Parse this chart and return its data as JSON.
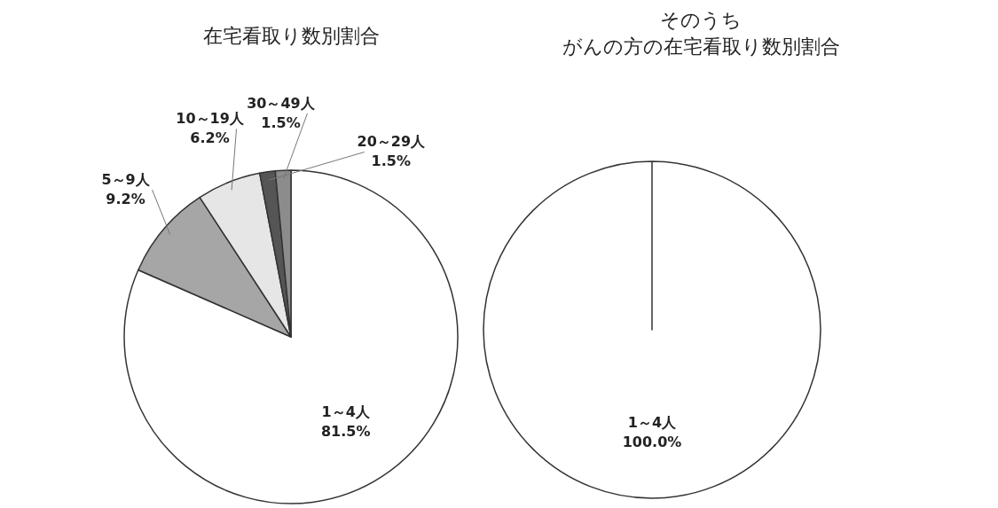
{
  "chart_data": [
    {
      "type": "pie",
      "title": "在宅看取り数別割合",
      "categories": [
        "1～4人",
        "5～9人",
        "10～19人",
        "20～29人",
        "30～49人"
      ],
      "values": [
        81.5,
        9.2,
        6.2,
        1.5,
        1.5
      ],
      "value_labels": [
        "81.5%",
        "9.2%",
        "6.2%",
        "1.5%",
        "1.5%"
      ],
      "colors": [
        "#ffffff",
        "#a6a6a6",
        "#e6e6e6",
        "#555555",
        "#8c8c8c"
      ]
    },
    {
      "type": "pie",
      "title": "そのうち",
      "subtitle": "がんの方の在宅看取り数別割合",
      "categories": [
        "1～4人"
      ],
      "values": [
        100.0
      ],
      "value_labels": [
        "100.0%"
      ],
      "colors": [
        "#ffffff"
      ]
    }
  ]
}
